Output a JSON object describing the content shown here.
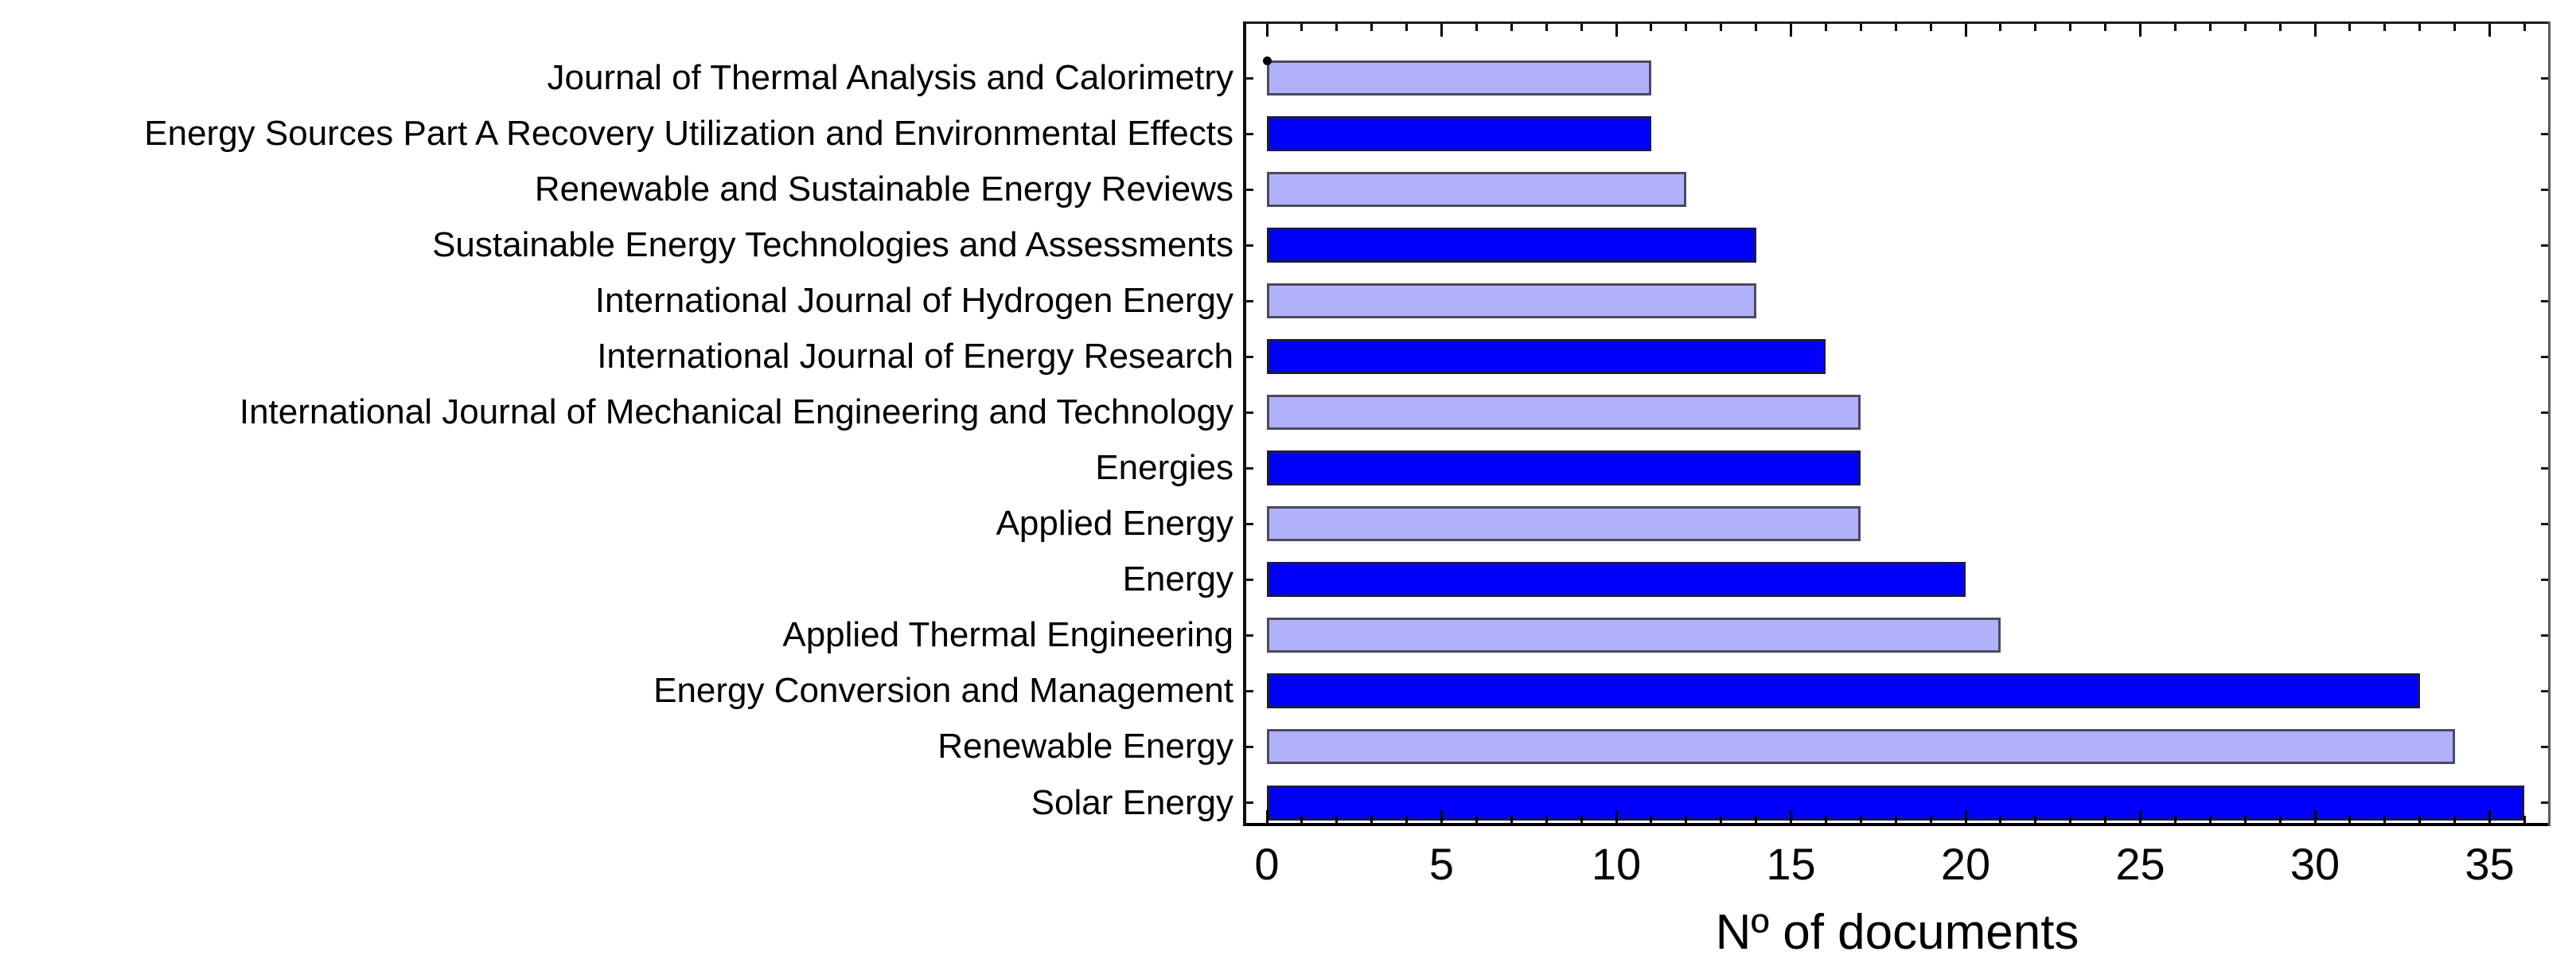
{
  "chart_data": {
    "type": "bar",
    "orientation": "horizontal",
    "title": "",
    "xlabel": "Nº of documents",
    "ylabel": "",
    "categories": [
      "Journal of Thermal Analysis and Calorimetry",
      "Energy Sources Part A Recovery Utilization and Environmental Effects",
      "Renewable and Sustainable Energy Reviews",
      "Sustainable Energy Technologies and Assessments",
      "International Journal of Hydrogen Energy",
      "International Journal of Energy Research",
      "International Journal of Mechanical Engineering and Technology",
      "Energies",
      "Applied Energy",
      "Energy",
      "Applied Thermal Engineering",
      "Energy Conversion and Management",
      "Renewable Energy",
      "Solar Energy"
    ],
    "values": [
      11,
      11,
      12,
      14,
      14,
      16,
      17,
      17,
      17,
      20,
      21,
      33,
      34,
      36
    ],
    "bar_styles": [
      "light",
      "dark",
      "light",
      "dark",
      "light",
      "dark",
      "light",
      "dark",
      "light",
      "dark",
      "light",
      "dark",
      "light",
      "dark"
    ],
    "colors": {
      "light_fill": "#b1b1f9",
      "light_border": "#4a4a5e",
      "dark_fill": "#0000fc",
      "dark_border": "#1b1b4a",
      "axis": "#000000",
      "background": "#ffffff"
    },
    "xlim": [
      -0.66,
      36.74
    ],
    "x_major_ticks": [
      0,
      5,
      10,
      15,
      20,
      25,
      30,
      35
    ],
    "x_minor_tick_step": 1,
    "x_minor_tick_max": 36,
    "grid": false,
    "legend": null,
    "annotations": [
      {
        "name": "origin-dot",
        "x": 0,
        "row": 0,
        "shape": "circle",
        "color": "#000000"
      }
    ]
  }
}
